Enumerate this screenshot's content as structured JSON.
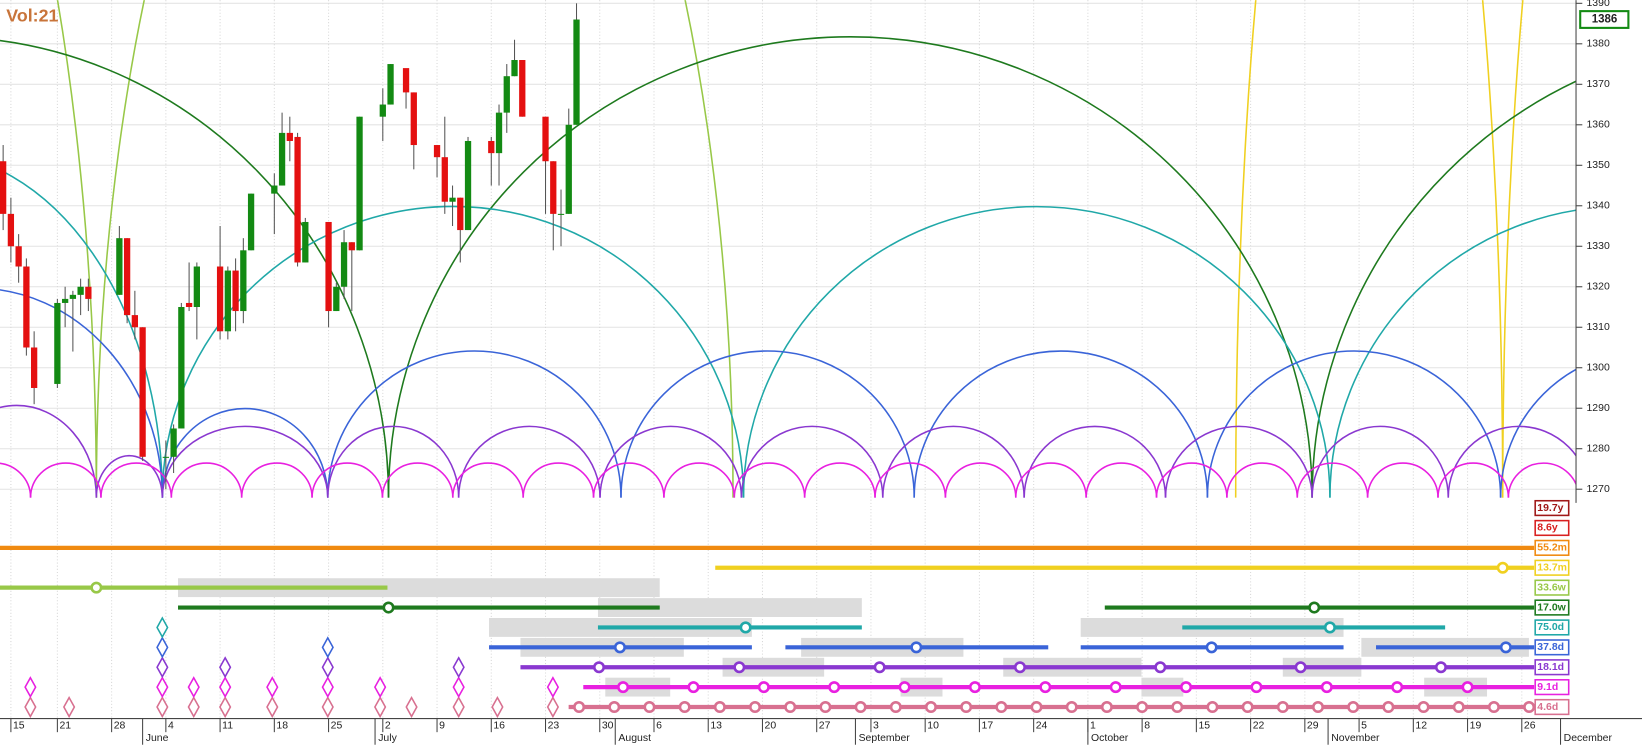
{
  "chart_data": {
    "type": "candlestick",
    "title": "Vol:21",
    "x": [
      "05-14",
      "05-15",
      "05-16",
      "05-17",
      "05-18",
      "05-21",
      "05-22",
      "05-23",
      "05-24",
      "05-25",
      "05-29",
      "05-30",
      "05-31",
      "06-01",
      "06-04",
      "06-05",
      "06-06",
      "06-07",
      "06-08",
      "06-11",
      "06-12",
      "06-13",
      "06-14",
      "06-15",
      "06-18",
      "06-19",
      "06-20",
      "06-21",
      "06-22",
      "06-25",
      "06-26",
      "06-27",
      "06-28",
      "06-29",
      "07-02",
      "07-03",
      "07-05",
      "07-06",
      "07-09",
      "07-10",
      "07-11",
      "07-12",
      "07-13",
      "07-16",
      "07-17",
      "07-18",
      "07-19",
      "07-20",
      "07-23",
      "07-24",
      "07-25",
      "07-26",
      "07-27"
    ],
    "open": [
      1351,
      1338,
      1330,
      1325,
      1305,
      1296,
      1316,
      1317,
      1318,
      1320,
      1318,
      1332,
      1313,
      1310,
      1278,
      1278,
      1285,
      1316,
      1315,
      1325,
      1309,
      1324,
      1314,
      1329,
      1343,
      1345,
      1358,
      1357,
      1326,
      1336,
      1314,
      1320,
      1331,
      1329,
      1362,
      1365,
      1374,
      1368,
      1355,
      1352,
      1341,
      1342,
      1334,
      1356,
      1353,
      1363,
      1372,
      1376,
      1362,
      1351,
      1338,
      1338,
      1360
    ],
    "high": [
      1355,
      1342,
      1333,
      1327,
      1309,
      1317,
      1320,
      1319,
      1322,
      1322,
      1335,
      1332,
      1319,
      1310,
      1282,
      1286,
      1316,
      1326,
      1326,
      1335,
      1325,
      1327,
      1332,
      1343,
      1348,
      1363,
      1362,
      1358,
      1337,
      1336,
      1321,
      1334,
      1331,
      1362,
      1369,
      1375,
      1373,
      1368,
      1355,
      1362,
      1345,
      1342,
      1357,
      1357,
      1365,
      1375,
      1381,
      1376,
      1362,
      1351,
      1344,
      1364,
      1390
    ],
    "low": [
      1334,
      1326,
      1321,
      1303,
      1291,
      1295,
      1310,
      1304,
      1313,
      1314,
      1318,
      1311,
      1307,
      1277,
      1270,
      1274,
      1285,
      1314,
      1307,
      1307,
      1307,
      1309,
      1311,
      1329,
      1333,
      1345,
      1351,
      1325,
      1326,
      1310,
      1314,
      1317,
      1314,
      1329,
      1356,
      1365,
      1364,
      1349,
      1347,
      1338,
      1335,
      1326,
      1334,
      1345,
      1345,
      1358,
      1372,
      1362,
      1338,
      1329,
      1330,
      1338,
      1360
    ],
    "close": [
      1338,
      1330,
      1325,
      1305,
      1295,
      1316,
      1317,
      1318,
      1320,
      1317,
      1332,
      1313,
      1310,
      1278,
      1278,
      1285,
      1315,
      1315,
      1325,
      1309,
      1324,
      1314,
      1329,
      1343,
      1345,
      1358,
      1356,
      1326,
      1336,
      1314,
      1320,
      1331,
      1329,
      1362,
      1365,
      1375,
      1368,
      1355,
      1352,
      1341,
      1342,
      1334,
      1356,
      1353,
      1363,
      1372,
      1376,
      1362,
      1351,
      1338,
      1338,
      1360,
      1386
    ],
    "colors": {
      "up": "#138a13",
      "down": "#e41010"
    },
    "ylim": [
      1270,
      1390
    ],
    "yticks": [
      1270,
      1280,
      1290,
      1300,
      1310,
      1320,
      1330,
      1340,
      1350,
      1360,
      1370,
      1380,
      1390
    ],
    "xlim": [
      "05-14",
      "12-03"
    ],
    "xticks": [
      {
        "value": "05-15",
        "label": "15"
      },
      {
        "value": "05-21",
        "label": "21"
      },
      {
        "value": "05-28",
        "label": "28"
      },
      {
        "value": "06-04",
        "label": "4"
      },
      {
        "value": "06-11",
        "label": "11"
      },
      {
        "value": "06-18",
        "label": "18"
      },
      {
        "value": "06-25",
        "label": "25"
      },
      {
        "value": "07-02",
        "label": "2"
      },
      {
        "value": "07-09",
        "label": "9"
      },
      {
        "value": "07-16",
        "label": "16"
      },
      {
        "value": "07-23",
        "label": "23"
      },
      {
        "value": "07-30",
        "label": "30"
      },
      {
        "value": "08-06",
        "label": "6"
      },
      {
        "value": "08-13",
        "label": "13"
      },
      {
        "value": "08-20",
        "label": "20"
      },
      {
        "value": "08-27",
        "label": "27"
      },
      {
        "value": "09-03",
        "label": "3"
      },
      {
        "value": "09-10",
        "label": "10"
      },
      {
        "value": "09-17",
        "label": "17"
      },
      {
        "value": "09-24",
        "label": "24"
      },
      {
        "value": "10-01",
        "label": "1"
      },
      {
        "value": "10-08",
        "label": "8"
      },
      {
        "value": "10-15",
        "label": "15"
      },
      {
        "value": "10-22",
        "label": "22"
      },
      {
        "value": "10-29",
        "label": "29"
      },
      {
        "value": "11-05",
        "label": "5"
      },
      {
        "value": "11-12",
        "label": "12"
      },
      {
        "value": "11-19",
        "label": "19"
      },
      {
        "value": "11-26",
        "label": "26"
      }
    ],
    "month_labels": [
      {
        "value": "06-01",
        "label": "June"
      },
      {
        "value": "07-01",
        "label": "July"
      },
      {
        "value": "08-01",
        "label": "August"
      },
      {
        "value": "09-01",
        "label": "September"
      },
      {
        "value": "10-01",
        "label": "October"
      },
      {
        "value": "11-01",
        "label": "November"
      },
      {
        "value": "12-01",
        "label": "December"
      }
    ],
    "last_price": 1386,
    "cycles": [
      {
        "name": "19.7y",
        "color": "#a01818"
      },
      {
        "name": "8.6y",
        "color": "#d82020"
      },
      {
        "name": "55.2m",
        "color": "#f08a10"
      },
      {
        "name": "13.7m",
        "color": "#f0d020"
      },
      {
        "name": "33.6w",
        "color": "#98c848"
      },
      {
        "name": "17.0w",
        "color": "#1e7a1e"
      },
      {
        "name": "75.0d",
        "color": "#20a8a8"
      },
      {
        "name": "37.8d",
        "color": "#3a64d8"
      },
      {
        "name": "18.1d",
        "color": "#8a38d0"
      },
      {
        "name": "9.1d",
        "color": "#e820e0"
      },
      {
        "name": "4.6d",
        "color": "#d87090"
      }
    ]
  }
}
